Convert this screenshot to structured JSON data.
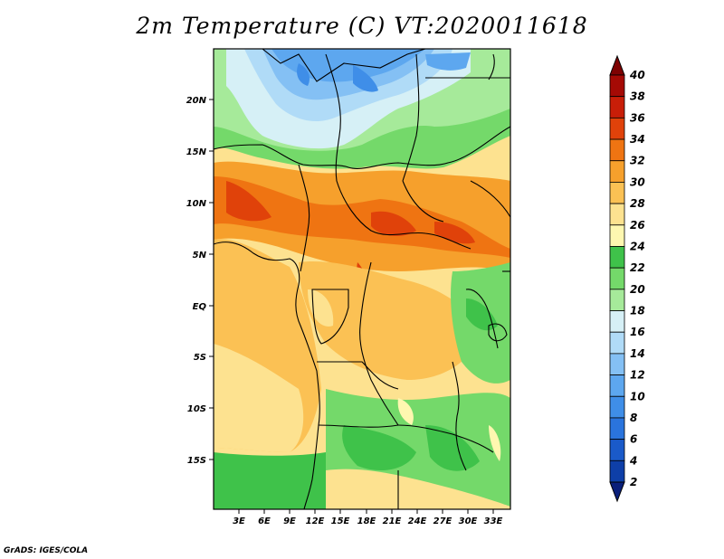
{
  "title": "2m Temperature (C) VT:2020011618",
  "credit": "GrADS: IGES/COLA",
  "map": {
    "lat_labels": [
      "20N",
      "15N",
      "10N",
      "5N",
      "EQ",
      "5S",
      "10S",
      "15S"
    ],
    "lon_labels": [
      "3E",
      "6E",
      "9E",
      "12E",
      "15E",
      "18E",
      "21E",
      "24E",
      "27E",
      "30E",
      "33E"
    ],
    "lat_range": [
      -20,
      25
    ],
    "lon_range": [
      0,
      35
    ]
  },
  "colorbar": {
    "levels": [
      "2",
      "4",
      "6",
      "8",
      "10",
      "12",
      "14",
      "16",
      "18",
      "20",
      "22",
      "24",
      "26",
      "28",
      "30",
      "32",
      "34",
      "36",
      "38",
      "40"
    ],
    "colors": [
      "#0a1f7a",
      "#0e3fa8",
      "#1a5ac9",
      "#2a74dd",
      "#3f8ee8",
      "#5da7ef",
      "#84c0f4",
      "#b0dbf7",
      "#d6f0f6",
      "#a6ea9a",
      "#74d96a",
      "#3fc24a",
      "#fef7b0",
      "#fde290",
      "#fbc154",
      "#f6a02c",
      "#ef7412",
      "#e0420a",
      "#c81e08",
      "#a50a05",
      "#7e0202"
    ]
  },
  "legend_note": "colors: field values shown by colour bins (C)"
}
